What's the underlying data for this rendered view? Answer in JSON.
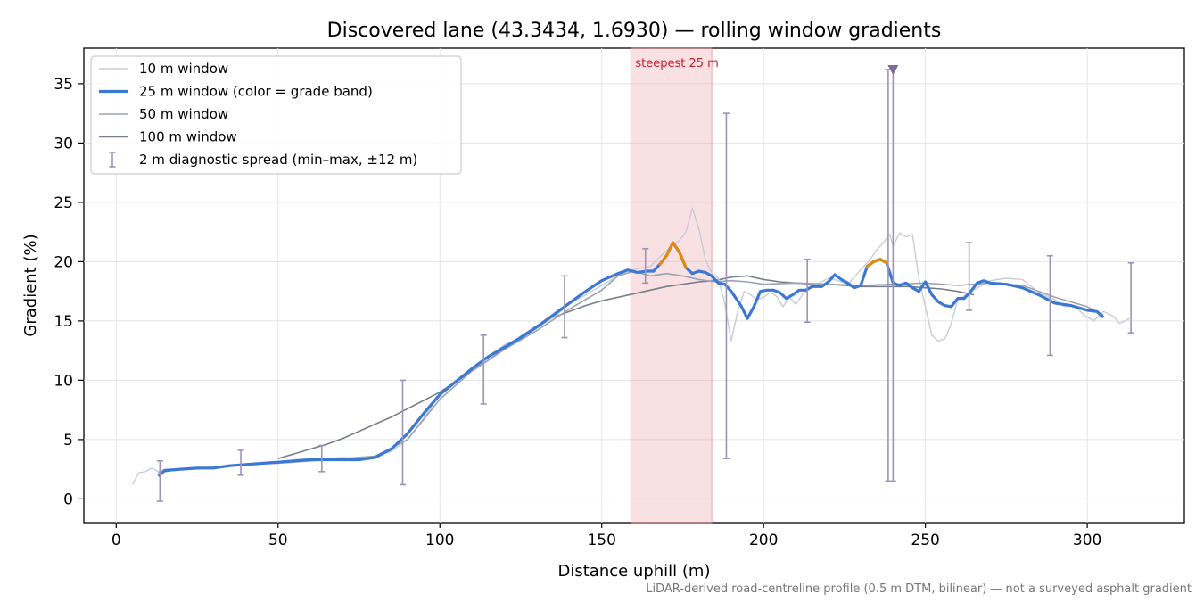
{
  "chart_data": {
    "type": "line",
    "title": "Discovered lane (43.3434, 1.6930) — rolling window gradients",
    "xlabel": "Distance uphill (m)",
    "ylabel": "Gradient (%)",
    "xlim": [
      -10,
      330
    ],
    "ylim": [
      -2,
      38
    ],
    "x_ticks": [
      0,
      50,
      100,
      150,
      200,
      250,
      300
    ],
    "y_ticks": [
      0,
      5,
      10,
      15,
      20,
      25,
      30,
      35
    ],
    "grid": true,
    "legend_position": "top-left",
    "footnote": "LiDAR-derived road-centreline profile (0.5 m DTM, bilinear) — not a surveyed asphalt gradient",
    "shaded_region": {
      "label": "steepest 25 m",
      "x_start": 159,
      "x_end": 184,
      "color": "#e8a0a8"
    },
    "marker": {
      "x": 240,
      "y": 36.2,
      "symbol": "triangle-down",
      "color": "#7a6c9c"
    },
    "series": [
      {
        "name": "10 m window",
        "color": "#c8ccd6",
        "x": [
          5,
          7,
          9,
          11,
          13,
          15,
          20,
          25,
          30,
          35,
          40,
          45,
          50,
          55,
          60,
          65,
          70,
          75,
          80,
          85,
          90,
          95,
          100,
          105,
          110,
          115,
          120,
          125,
          130,
          135,
          140,
          145,
          150,
          155,
          158,
          161,
          165,
          168,
          171,
          174,
          176,
          178,
          180,
          182,
          184,
          186,
          188,
          190,
          192,
          194,
          196,
          198,
          200,
          202,
          204,
          206,
          208,
          210,
          212,
          215,
          218,
          220,
          223,
          226,
          230,
          233,
          235,
          237,
          239,
          240,
          242,
          244,
          246,
          248,
          250,
          252,
          254,
          256,
          258,
          260,
          263,
          266,
          270,
          275,
          280,
          285,
          290,
          293,
          296,
          299,
          302,
          305,
          308,
          310,
          313
        ],
        "y": [
          1.2,
          2.2,
          2.3,
          2.6,
          2.3,
          2.5,
          2.5,
          2.5,
          2.6,
          2.8,
          2.9,
          3.0,
          3.1,
          3.3,
          3.4,
          3.4,
          3.5,
          3.4,
          3.6,
          4.0,
          5.0,
          6.8,
          8.8,
          10.0,
          11.0,
          12.0,
          13.0,
          13.6,
          14.4,
          15.3,
          16.4,
          17.2,
          18.0,
          18.8,
          19.2,
          19.4,
          19.6,
          20.4,
          21.2,
          21.8,
          22.5,
          24.5,
          22.8,
          20.2,
          19.0,
          18.6,
          16.5,
          13.3,
          15.8,
          17.5,
          17.2,
          16.8,
          17.0,
          17.4,
          17.1,
          16.2,
          17.0,
          16.4,
          17.2,
          18.0,
          18.3,
          18.6,
          18.4,
          18.1,
          19.3,
          20.2,
          21.0,
          21.6,
          22.3,
          21.3,
          22.4,
          22.1,
          22.3,
          18.6,
          16.2,
          13.8,
          13.3,
          13.5,
          14.8,
          16.8,
          17.3,
          17.8,
          18.4,
          18.6,
          18.5,
          17.4,
          16.8,
          16.2,
          16.3,
          15.5,
          15.0,
          15.8,
          15.4,
          14.8,
          15.2
        ]
      },
      {
        "name": "25 m window (color = grade band)",
        "color": "#3a78d4",
        "band_color": "#e08a10",
        "band_threshold": 19.8,
        "x": [
          13,
          15,
          20,
          25,
          30,
          35,
          40,
          45,
          50,
          55,
          60,
          65,
          70,
          75,
          80,
          85,
          90,
          95,
          100,
          105,
          110,
          115,
          120,
          125,
          130,
          135,
          140,
          145,
          150,
          155,
          158,
          161,
          164,
          166,
          168,
          170,
          172,
          174,
          176,
          178,
          180,
          182,
          184,
          186,
          188,
          190,
          193,
          195,
          197,
          199,
          201,
          203,
          205,
          207,
          209,
          211,
          213,
          215,
          218,
          220,
          222,
          224,
          226,
          228,
          230,
          232,
          234,
          236,
          238,
          240,
          242,
          244,
          246,
          248,
          250,
          252,
          254,
          256,
          258,
          260,
          262,
          264,
          266,
          268,
          270,
          275,
          280,
          285,
          290,
          295,
          300,
          303,
          305
        ],
        "y": [
          1.9,
          2.4,
          2.5,
          2.6,
          2.6,
          2.8,
          2.9,
          3.0,
          3.1,
          3.2,
          3.3,
          3.3,
          3.3,
          3.3,
          3.5,
          4.2,
          5.5,
          7.2,
          8.8,
          9.9,
          11.0,
          12.0,
          12.8,
          13.6,
          14.5,
          15.5,
          16.5,
          17.5,
          18.4,
          19.0,
          19.3,
          19.1,
          19.2,
          19.2,
          19.8,
          20.5,
          21.6,
          20.8,
          19.5,
          19.0,
          19.2,
          19.1,
          18.8,
          18.2,
          18.1,
          17.5,
          16.3,
          15.2,
          16.2,
          17.5,
          17.6,
          17.6,
          17.4,
          16.9,
          17.2,
          17.6,
          17.6,
          17.9,
          17.9,
          18.3,
          18.9,
          18.5,
          18.2,
          17.8,
          18.0,
          19.6,
          20.0,
          20.2,
          19.9,
          18.2,
          18.0,
          18.2,
          17.8,
          17.5,
          18.3,
          17.2,
          16.6,
          16.3,
          16.2,
          16.9,
          16.9,
          17.5,
          18.2,
          18.4,
          18.2,
          18.1,
          17.8,
          17.2,
          16.5,
          16.3,
          15.9,
          15.8,
          15.3
        ]
      },
      {
        "name": "50 m window",
        "color": "#9aa2b4",
        "x": [
          13,
          20,
          30,
          40,
          50,
          60,
          70,
          80,
          90,
          100,
          110,
          120,
          130,
          140,
          150,
          155,
          160,
          165,
          170,
          175,
          180,
          185,
          190,
          195,
          200,
          210,
          220,
          230,
          240,
          250,
          260,
          270,
          280,
          290,
          300,
          305
        ],
        "y": [
          2.2,
          2.5,
          2.6,
          2.9,
          3.0,
          3.2,
          3.4,
          3.6,
          5.0,
          8.4,
          10.8,
          12.6,
          14.2,
          16.0,
          17.6,
          18.8,
          19.2,
          18.8,
          19.0,
          18.8,
          18.5,
          18.3,
          18.4,
          18.3,
          18.1,
          18.2,
          18.1,
          18.0,
          18.1,
          18.2,
          18.0,
          18.2,
          18.0,
          17.0,
          16.2,
          15.5
        ]
      },
      {
        "name": "100 m window",
        "color": "#787f8c",
        "x": [
          50,
          55,
          60,
          65,
          70,
          75,
          80,
          85,
          90,
          95,
          100,
          105,
          110,
          115,
          120,
          125,
          130,
          135,
          140,
          145,
          150,
          155,
          160,
          165,
          170,
          175,
          180,
          185,
          190,
          195,
          200,
          205,
          210,
          215,
          220,
          225,
          230,
          235,
          240,
          245,
          250,
          255,
          260,
          265
        ],
        "y": [
          3.4,
          3.8,
          4.2,
          4.6,
          5.1,
          5.7,
          6.3,
          6.9,
          7.6,
          8.3,
          9.0,
          9.9,
          10.8,
          11.7,
          12.7,
          13.7,
          14.6,
          15.3,
          15.8,
          16.3,
          16.7,
          17.0,
          17.3,
          17.6,
          17.9,
          18.1,
          18.3,
          18.4,
          18.7,
          18.8,
          18.5,
          18.3,
          18.2,
          18.1,
          18.1,
          18.0,
          17.9,
          17.9,
          17.9,
          17.9,
          17.8,
          17.7,
          17.5,
          17.2
        ]
      },
      {
        "name": "2 m diagnostic spread (min–max, ±12 m)",
        "color": "#9c94b8",
        "type": "errorbar",
        "points": [
          {
            "x": 13.5,
            "min": -0.2,
            "max": 3.2
          },
          {
            "x": 38.5,
            "min": 2.0,
            "max": 4.1
          },
          {
            "x": 63.5,
            "min": 2.3,
            "max": 4.5
          },
          {
            "x": 88.5,
            "min": 1.2,
            "max": 10.0
          },
          {
            "x": 113.5,
            "min": 8.0,
            "max": 13.8
          },
          {
            "x": 138.5,
            "min": 13.6,
            "max": 18.8
          },
          {
            "x": 163.5,
            "min": 18.2,
            "max": 21.1
          },
          {
            "x": 188.5,
            "min": 3.4,
            "max": 32.5
          },
          {
            "x": 213.5,
            "min": 14.9,
            "max": 20.2
          },
          {
            "x": 238.5,
            "min": 1.5,
            "max": 36.2
          },
          {
            "x": 240,
            "min": 1.5,
            "max": 36.2
          },
          {
            "x": 263.5,
            "min": 15.9,
            "max": 21.6
          },
          {
            "x": 288.5,
            "min": 12.1,
            "max": 20.5
          },
          {
            "x": 313.5,
            "min": 14.0,
            "max": 19.9
          }
        ]
      }
    ]
  }
}
